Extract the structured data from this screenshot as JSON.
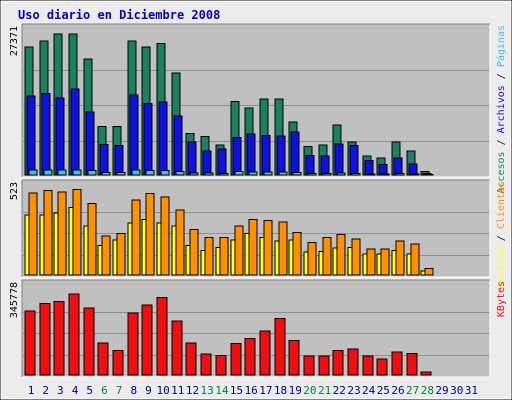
{
  "title": "Uso diario en Diciembre 2008",
  "colors": {
    "background": "#c0c0c0",
    "frame": "#ececec",
    "hits": "#1a8060",
    "files": "#1010e0",
    "pages": "#40c0e0",
    "visits": "#ffff20",
    "sites": "#ff9000",
    "kbytes": "#ee1010",
    "weekend_label": "#008040",
    "weekday_label": "#000080",
    "title": "#0000cc"
  },
  "chart_data": [
    {
      "type": "bar",
      "name": "accesos-archivos-paginas",
      "ymax_label": "27371",
      "ylim": [
        0,
        27371
      ],
      "legend": [
        {
          "label": "Accesos",
          "color": "#1a8060"
        },
        {
          "sep": "/"
        },
        {
          "label": "Archivos",
          "color": "#1010e0"
        },
        {
          "sep": "/"
        },
        {
          "label": "Páginas",
          "color": "#40c0e0"
        }
      ],
      "categories": [
        "1",
        "2",
        "3",
        "4",
        "5",
        "6",
        "7",
        "8",
        "9",
        "10",
        "11",
        "12",
        "13",
        "14",
        "15",
        "16",
        "17",
        "18",
        "19",
        "20",
        "21",
        "22",
        "23",
        "24",
        "25",
        "26",
        "27",
        "28",
        "29",
        "30",
        "31"
      ],
      "series": [
        {
          "name": "Accesos",
          "values": [
            24800,
            26000,
            27371,
            27371,
            22500,
            9400,
            9400,
            26000,
            24800,
            25500,
            19800,
            8100,
            7500,
            5800,
            14300,
            13000,
            14800,
            14800,
            10300,
            5500,
            5800,
            9700,
            6400,
            3700,
            3300,
            6400,
            4700,
            700,
            0,
            0,
            0
          ]
        },
        {
          "name": "Archivos",
          "values": [
            15300,
            15800,
            14900,
            16700,
            12200,
            5900,
            5700,
            15500,
            13900,
            14200,
            11500,
            6400,
            4700,
            5000,
            7300,
            8000,
            7700,
            7600,
            8300,
            3800,
            3700,
            6000,
            5700,
            2800,
            2000,
            3300,
            2100,
            300,
            0,
            0,
            0
          ]
        },
        {
          "name": "Páginas",
          "values": [
            1000,
            1000,
            1000,
            1000,
            900,
            500,
            500,
            1000,
            900,
            900,
            700,
            400,
            400,
            300,
            700,
            600,
            600,
            600,
            500,
            300,
            300,
            400,
            300,
            200,
            200,
            300,
            200,
            100,
            0,
            0,
            0
          ]
        }
      ]
    },
    {
      "type": "bar",
      "name": "visitas-clientes",
      "ymax_label": "523",
      "ylim": [
        0,
        523
      ],
      "legend": [
        {
          "label": "Visitas",
          "color": "#ffff20"
        },
        {
          "sep": "/"
        },
        {
          "label": "Clientes",
          "color": "#ff9000"
        }
      ],
      "categories": [
        "1",
        "2",
        "3",
        "4",
        "5",
        "6",
        "7",
        "8",
        "9",
        "10",
        "11",
        "12",
        "13",
        "14",
        "15",
        "16",
        "17",
        "18",
        "19",
        "20",
        "21",
        "22",
        "23",
        "24",
        "25",
        "26",
        "27",
        "28",
        "29",
        "30",
        "31"
      ],
      "series": [
        {
          "name": "Visitas",
          "values": [
            370,
            370,
            380,
            415,
            300,
            180,
            215,
            320,
            340,
            320,
            300,
            180,
            150,
            170,
            215,
            255,
            230,
            210,
            215,
            140,
            145,
            165,
            170,
            130,
            130,
            150,
            130,
            25,
            0,
            0,
            0
          ]
        },
        {
          "name": "Clientes",
          "values": [
            505,
            520,
            510,
            525,
            440,
            240,
            255,
            460,
            500,
            480,
            400,
            280,
            230,
            230,
            300,
            340,
            335,
            325,
            260,
            200,
            230,
            250,
            220,
            160,
            160,
            210,
            190,
            40,
            0,
            0,
            0
          ]
        }
      ]
    },
    {
      "type": "bar",
      "name": "kbytes",
      "ymax_label": "345778",
      "ylim": [
        0,
        345778
      ],
      "legend": [
        {
          "label": "KBytes",
          "color": "#ee1010"
        }
      ],
      "categories": [
        "1",
        "2",
        "3",
        "4",
        "5",
        "6",
        "7",
        "8",
        "9",
        "10",
        "11",
        "12",
        "13",
        "14",
        "15",
        "16",
        "17",
        "18",
        "19",
        "20",
        "21",
        "22",
        "23",
        "24",
        "25",
        "26",
        "27",
        "28",
        "29",
        "30",
        "31"
      ],
      "series": [
        {
          "name": "KBytes",
          "values": [
            260000,
            290000,
            300000,
            330000,
            272000,
            130000,
            100000,
            252000,
            285000,
            315000,
            220000,
            130000,
            85000,
            80000,
            128000,
            148000,
            178000,
            230000,
            140000,
            77000,
            78000,
            100000,
            106000,
            78000,
            66000,
            94000,
            87000,
            12000,
            0,
            0,
            0
          ]
        }
      ]
    }
  ]
}
